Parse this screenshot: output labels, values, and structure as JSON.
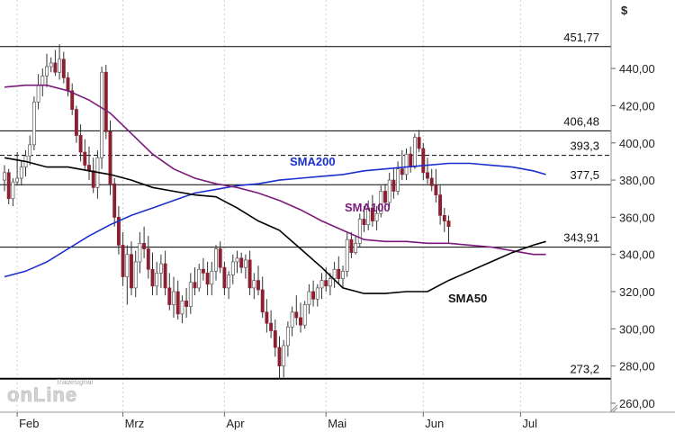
{
  "chart_data": {
    "type": "candlestick",
    "currency_symbol": "$",
    "ylim": [
      255,
      460
    ],
    "y_ticks": [
      "260,00",
      "280,00",
      "300,00",
      "320,00",
      "340,00",
      "360,00",
      "380,00",
      "400,00",
      "420,00",
      "440,00"
    ],
    "x_ticks": [
      {
        "label": "Feb",
        "index": 3
      },
      {
        "label": "Mrz",
        "index": 28
      },
      {
        "label": "Apr",
        "index": 52
      },
      {
        "label": "Mai",
        "index": 76
      },
      {
        "label": "Jun",
        "index": 99
      },
      {
        "label": "Jul",
        "index": 122
      }
    ],
    "levels": [
      {
        "value": 451.77,
        "label": "451,77",
        "style": "solid"
      },
      {
        "value": 406.48,
        "label": "406,48",
        "style": "solid"
      },
      {
        "value": 393.3,
        "label": "393,3",
        "style": "dashed"
      },
      {
        "value": 377.5,
        "label": "377,5",
        "style": "solid"
      },
      {
        "value": 343.91,
        "label": "343,91",
        "style": "solid"
      },
      {
        "value": 273.2,
        "label": "273,2",
        "style": "thick"
      }
    ],
    "series": [
      {
        "name": "SMA200",
        "color": "#1c2fcf",
        "points": [
          [
            0,
            328
          ],
          [
            5,
            331
          ],
          [
            10,
            336
          ],
          [
            15,
            343
          ],
          [
            20,
            350
          ],
          [
            25,
            356
          ],
          [
            30,
            361
          ],
          [
            35,
            365
          ],
          [
            40,
            369
          ],
          [
            45,
            373
          ],
          [
            50,
            375
          ],
          [
            55,
            377
          ],
          [
            60,
            378
          ],
          [
            65,
            380
          ],
          [
            70,
            381
          ],
          [
            75,
            382
          ],
          [
            80,
            383
          ],
          [
            85,
            385
          ],
          [
            90,
            386
          ],
          [
            95,
            387
          ],
          [
            100,
            388
          ],
          [
            105,
            389
          ],
          [
            110,
            389
          ],
          [
            115,
            388
          ],
          [
            120,
            387
          ],
          [
            125,
            385
          ],
          [
            128,
            383
          ]
        ]
      },
      {
        "name": "SMA100",
        "color": "#7a1a7a",
        "points": [
          [
            0,
            430
          ],
          [
            5,
            431
          ],
          [
            10,
            431
          ],
          [
            15,
            428
          ],
          [
            20,
            423
          ],
          [
            25,
            416
          ],
          [
            30,
            405
          ],
          [
            35,
            394
          ],
          [
            40,
            386
          ],
          [
            45,
            381
          ],
          [
            50,
            378
          ],
          [
            55,
            376
          ],
          [
            60,
            373
          ],
          [
            65,
            369
          ],
          [
            70,
            364
          ],
          [
            75,
            358
          ],
          [
            80,
            353
          ],
          [
            85,
            348
          ],
          [
            90,
            347
          ],
          [
            95,
            347
          ],
          [
            100,
            346
          ],
          [
            105,
            346
          ],
          [
            110,
            345
          ],
          [
            115,
            344
          ],
          [
            120,
            342
          ],
          [
            125,
            340
          ],
          [
            128,
            340
          ]
        ]
      },
      {
        "name": "SMA50",
        "color": "#000000",
        "points": [
          [
            0,
            392
          ],
          [
            5,
            390
          ],
          [
            10,
            387
          ],
          [
            15,
            387
          ],
          [
            20,
            385
          ],
          [
            25,
            383
          ],
          [
            30,
            380
          ],
          [
            35,
            376
          ],
          [
            40,
            374
          ],
          [
            45,
            372
          ],
          [
            50,
            371
          ],
          [
            55,
            365
          ],
          [
            60,
            358
          ],
          [
            65,
            353
          ],
          [
            70,
            343
          ],
          [
            75,
            333
          ],
          [
            80,
            322
          ],
          [
            85,
            319
          ],
          [
            90,
            319
          ],
          [
            95,
            320
          ],
          [
            100,
            320
          ],
          [
            105,
            326
          ],
          [
            110,
            331
          ],
          [
            115,
            336
          ],
          [
            120,
            341
          ],
          [
            125,
            345
          ],
          [
            128,
            347
          ]
        ]
      }
    ],
    "candles": [
      [
        380,
        388,
        374,
        384
      ],
      [
        384,
        386,
        367,
        370
      ],
      [
        370,
        381,
        366,
        379
      ],
      [
        379,
        395,
        377,
        381
      ],
      [
        381,
        390,
        377,
        387
      ],
      [
        387,
        396,
        382,
        393
      ],
      [
        393,
        404,
        388,
        399
      ],
      [
        399,
        425,
        396,
        422
      ],
      [
        422,
        437,
        418,
        431
      ],
      [
        431,
        440,
        425,
        436
      ],
      [
        436,
        448,
        430,
        441
      ],
      [
        441,
        446,
        438,
        443
      ],
      [
        443,
        450,
        436,
        438
      ],
      [
        438,
        453,
        434,
        445
      ],
      [
        445,
        449,
        432,
        435
      ],
      [
        435,
        438,
        425,
        428
      ],
      [
        428,
        432,
        415,
        418
      ],
      [
        418,
        420,
        400,
        404
      ],
      [
        404,
        410,
        390,
        395
      ],
      [
        395,
        402,
        385,
        388
      ],
      [
        388,
        398,
        380,
        385
      ],
      [
        385,
        392,
        373,
        376
      ],
      [
        376,
        396,
        370,
        392
      ],
      [
        392,
        441,
        386,
        438
      ],
      [
        438,
        442,
        402,
        406
      ],
      [
        406,
        412,
        372,
        378
      ],
      [
        378,
        381,
        355,
        360
      ],
      [
        360,
        366,
        340,
        345
      ],
      [
        345,
        352,
        323,
        328
      ],
      [
        328,
        345,
        313,
        340
      ],
      [
        340,
        347,
        318,
        322
      ],
      [
        322,
        342,
        317,
        336
      ],
      [
        336,
        352,
        330,
        346
      ],
      [
        346,
        355,
        338,
        343
      ],
      [
        343,
        350,
        327,
        332
      ],
      [
        332,
        341,
        318,
        323
      ],
      [
        323,
        336,
        318,
        330
      ],
      [
        330,
        340,
        322,
        335
      ],
      [
        335,
        342,
        318,
        322
      ],
      [
        322,
        330,
        310,
        313
      ],
      [
        313,
        328,
        306,
        320
      ],
      [
        320,
        326,
        305,
        308
      ],
      [
        308,
        318,
        303,
        315
      ],
      [
        315,
        322,
        306,
        312
      ],
      [
        312,
        330,
        308,
        325
      ],
      [
        325,
        333,
        318,
        322
      ],
      [
        322,
        335,
        320,
        332
      ],
      [
        332,
        338,
        326,
        330
      ],
      [
        330,
        336,
        318,
        324
      ],
      [
        324,
        336,
        318,
        331
      ],
      [
        331,
        345,
        326,
        343
      ],
      [
        343,
        347,
        330,
        333
      ],
      [
        333,
        336,
        318,
        322
      ],
      [
        322,
        331,
        316,
        329
      ],
      [
        329,
        340,
        324,
        336
      ],
      [
        336,
        342,
        330,
        338
      ],
      [
        338,
        341,
        330,
        333
      ],
      [
        333,
        340,
        327,
        337
      ],
      [
        337,
        342,
        318,
        322
      ],
      [
        322,
        330,
        316,
        326
      ],
      [
        326,
        334,
        318,
        321
      ],
      [
        321,
        328,
        306,
        309
      ],
      [
        309,
        316,
        298,
        303
      ],
      [
        303,
        310,
        295,
        299
      ],
      [
        299,
        305,
        285,
        290
      ],
      [
        290,
        296,
        273,
        280
      ],
      [
        280,
        294,
        274,
        291
      ],
      [
        291,
        304,
        285,
        301
      ],
      [
        301,
        312,
        296,
        309
      ],
      [
        309,
        318,
        302,
        306
      ],
      [
        306,
        314,
        298,
        302
      ],
      [
        302,
        315,
        300,
        313
      ],
      [
        313,
        324,
        308,
        320
      ],
      [
        320,
        326,
        312,
        316
      ],
      [
        316,
        324,
        312,
        322
      ],
      [
        322,
        330,
        316,
        326
      ],
      [
        326,
        333,
        320,
        323
      ],
      [
        323,
        330,
        318,
        327
      ],
      [
        327,
        336,
        322,
        332
      ],
      [
        332,
        339,
        324,
        327
      ],
      [
        327,
        334,
        322,
        331
      ],
      [
        331,
        352,
        328,
        348
      ],
      [
        348,
        352,
        338,
        341
      ],
      [
        341,
        350,
        340,
        346
      ],
      [
        346,
        362,
        344,
        359
      ],
      [
        359,
        366,
        352,
        356
      ],
      [
        356,
        369,
        353,
        365
      ],
      [
        365,
        372,
        355,
        358
      ],
      [
        358,
        366,
        353,
        362
      ],
      [
        362,
        377,
        360,
        374
      ],
      [
        374,
        378,
        364,
        368
      ],
      [
        368,
        384,
        366,
        380
      ],
      [
        380,
        386,
        370,
        374
      ],
      [
        374,
        390,
        372,
        386
      ],
      [
        386,
        396,
        380,
        383
      ],
      [
        383,
        397,
        380,
        394
      ],
      [
        394,
        398,
        384,
        387
      ],
      [
        387,
        405,
        386,
        403
      ],
      [
        403,
        407,
        395,
        397
      ],
      [
        397,
        400,
        380,
        384
      ],
      [
        384,
        392,
        378,
        381
      ],
      [
        381,
        386,
        374,
        377
      ],
      [
        377,
        386,
        368,
        372
      ],
      [
        372,
        377,
        356,
        361
      ],
      [
        361,
        365,
        352,
        358
      ],
      [
        358,
        361,
        346,
        355
      ]
    ]
  },
  "labels": {
    "currency": "$",
    "sma200": "SMA200",
    "sma100": "SMA100",
    "sma50": "SMA50",
    "logo_top": "Tradesignal",
    "logo_main": "onLine"
  },
  "colors": {
    "bull": "#ffffff",
    "bear": "#8b2030",
    "wick": "#333333",
    "sma200": "#1c2fcf",
    "sma100": "#7a1a7a",
    "sma50": "#000000"
  }
}
